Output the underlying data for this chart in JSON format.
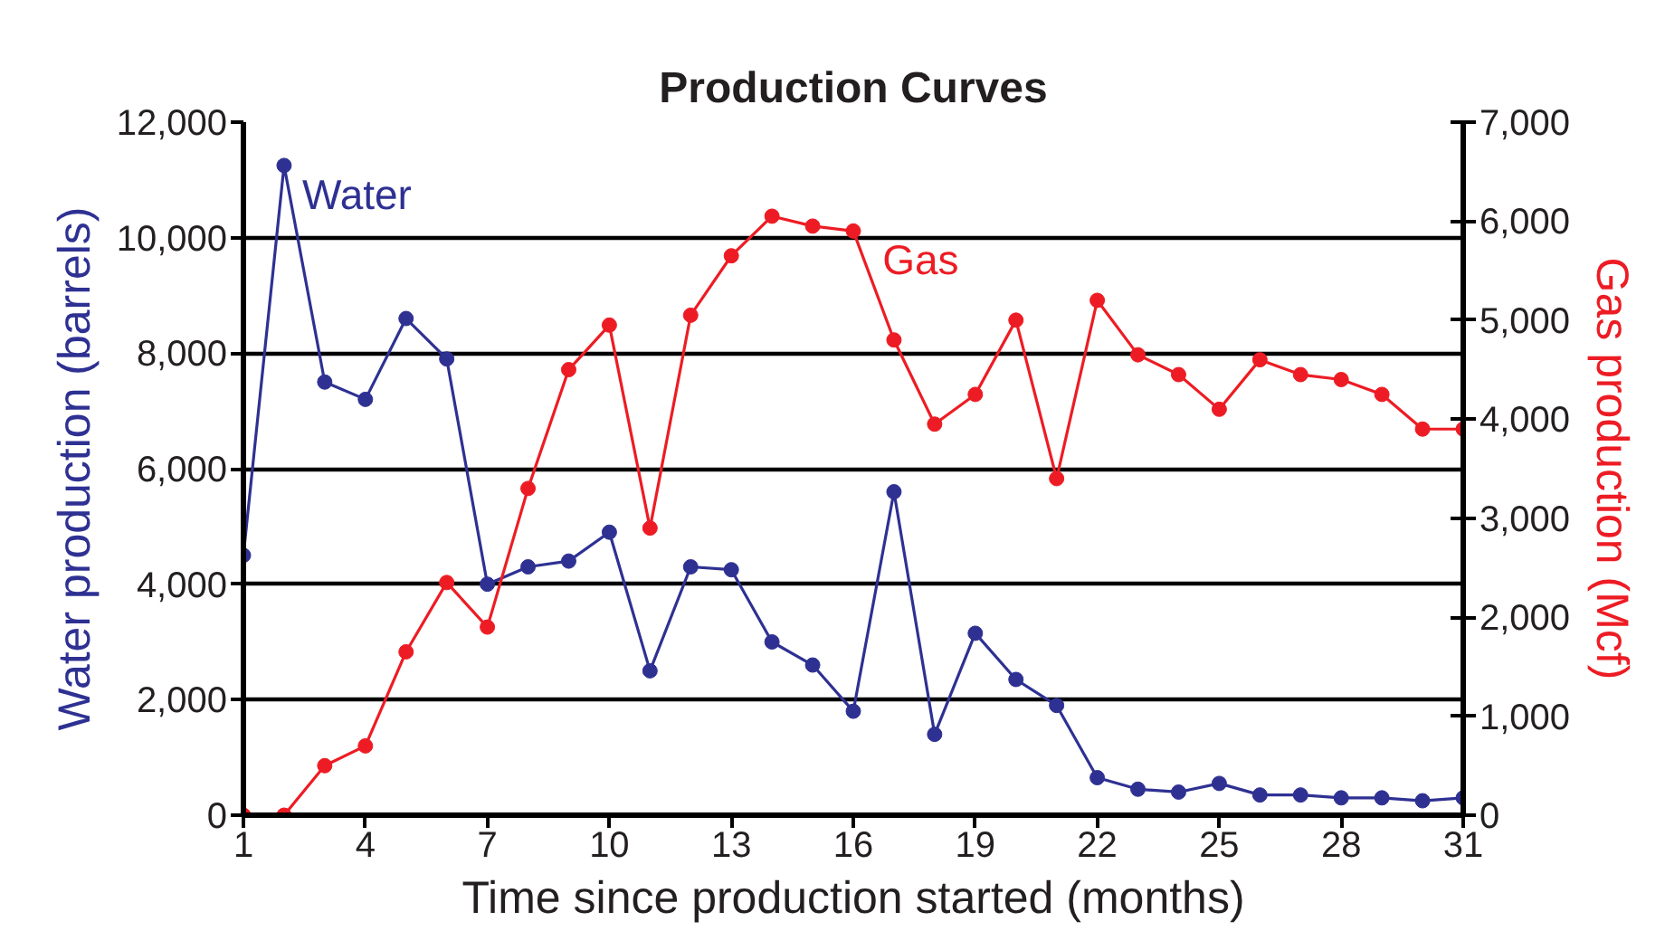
{
  "chart_data": {
    "type": "line",
    "title": "Production Curves",
    "xlabel": "Time since production started (months)",
    "ylabel": "Water production (barrels)",
    "y2label": "Gas production (Mcf)",
    "x": [
      1,
      2,
      3,
      4,
      5,
      6,
      7,
      8,
      9,
      10,
      11,
      12,
      13,
      14,
      15,
      16,
      17,
      18,
      19,
      20,
      21,
      22,
      23,
      24,
      25,
      26,
      27,
      28,
      29,
      30,
      31
    ],
    "series": [
      {
        "name": "Water",
        "color": "#2e3192",
        "values": [
          4500,
          11250,
          7500,
          7200,
          8600,
          7900,
          4000,
          4300,
          4400,
          4900,
          2500,
          4300,
          4250,
          3000,
          2600,
          1800,
          5600,
          1400,
          3150,
          2350,
          1900,
          650,
          450,
          400,
          550,
          350,
          350,
          300,
          300,
          250,
          300
        ]
      },
      {
        "name": "Gas",
        "color": "#ed1c24",
        "axis": "y2",
        "values": [
          0,
          0,
          500,
          700,
          1650,
          2350,
          1900,
          3300,
          4500,
          4950,
          2900,
          5050,
          5650,
          6050,
          5950,
          5900,
          4800,
          3950,
          4250,
          5000,
          3400,
          5200,
          4650,
          4450,
          4100,
          4600,
          4450,
          4400,
          4250,
          3900,
          3900
        ]
      }
    ],
    "xlim": [
      1,
      31
    ],
    "xticks": [
      1,
      4,
      7,
      10,
      13,
      16,
      19,
      22,
      25,
      28,
      31
    ],
    "ylim": [
      0,
      12000
    ],
    "yticks": [
      0,
      {
        "value": 2000,
        "label": "2,000"
      },
      {
        "value": 4000,
        "label": "4,000"
      },
      {
        "value": 6000,
        "label": "6,000"
      },
      {
        "value": 8000,
        "label": "8,000"
      },
      {
        "value": 10000,
        "label": "10,000"
      },
      {
        "value": 12000,
        "label": "12,000"
      }
    ],
    "y2lim": [
      0,
      7000
    ],
    "y2ticks": [
      0,
      {
        "value": 1000,
        "label": "1,000"
      },
      {
        "value": 2000,
        "label": "2,000"
      },
      {
        "value": 3000,
        "label": "3,000"
      },
      {
        "value": 4000,
        "label": "4,000"
      },
      {
        "value": 5000,
        "label": "5,000"
      },
      {
        "value": 6000,
        "label": "6,000"
      },
      {
        "value": 7000,
        "label": "7,000"
      }
    ],
    "grid": "y",
    "marker": "circle",
    "line_style": "solid"
  }
}
